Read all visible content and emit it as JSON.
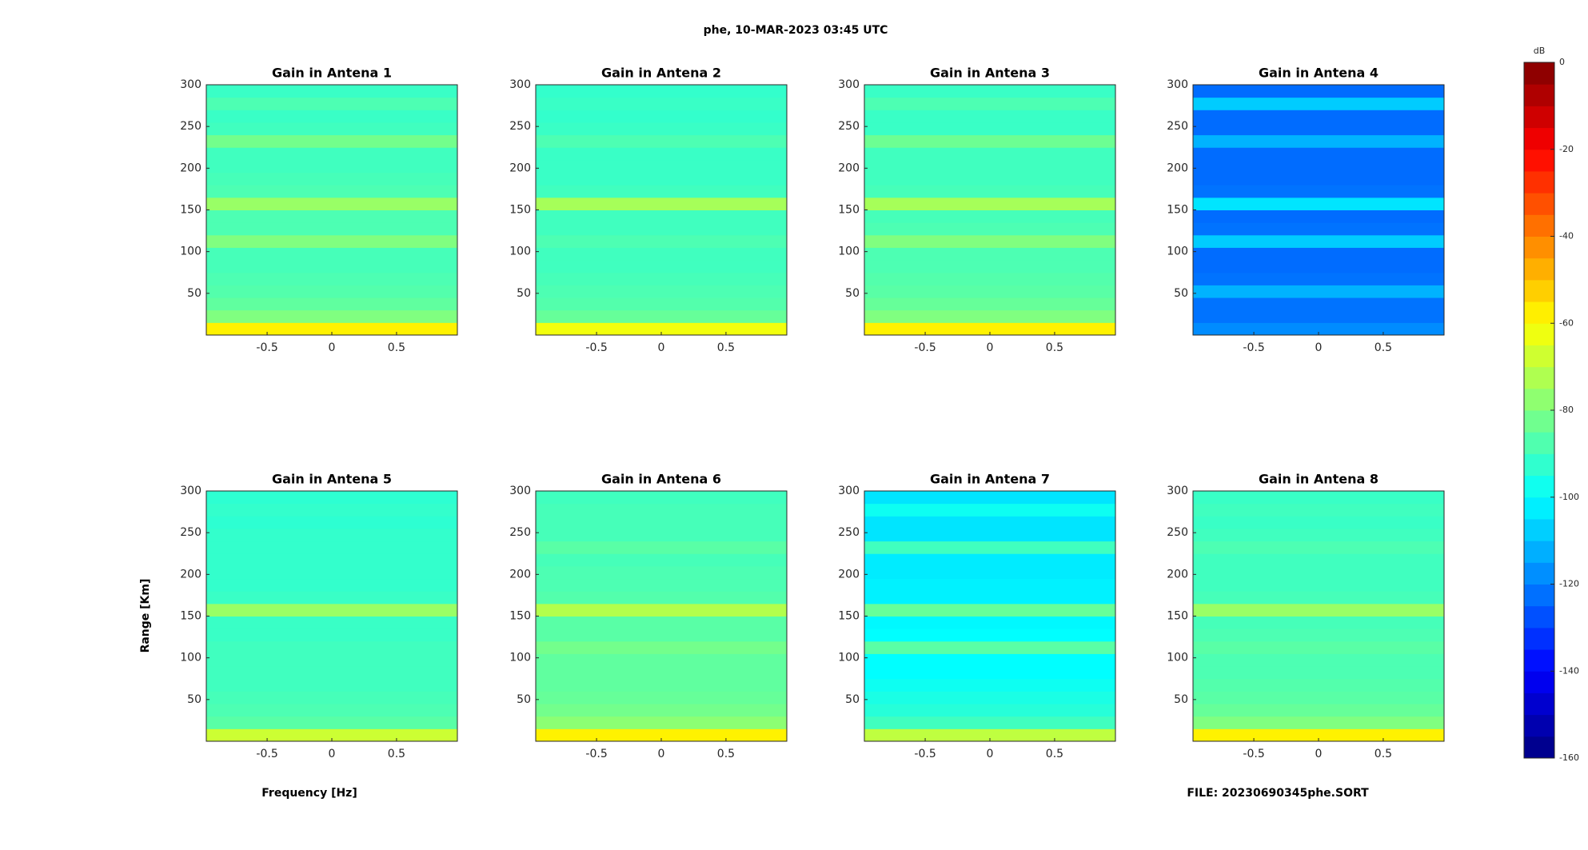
{
  "title": "phe, 10-MAR-2023 03:45 UTC",
  "xlabel": "Frequency [Hz]",
  "ylabel": "Range [Km]",
  "file": "FILE: 20230690345phe.SORT",
  "colorbar": {
    "label": "dB",
    "lim": [
      -160,
      0
    ],
    "ticks": [
      0,
      -20,
      -40,
      -60,
      -80,
      -100,
      -120,
      -140,
      -160
    ],
    "colormap": "jet"
  },
  "chart_data": [
    {
      "type": "heatmap",
      "title": "Gain in Antena 1",
      "xlim": [
        -0.97,
        0.97
      ],
      "xticks": [
        -0.5,
        0,
        0.5
      ],
      "ylim": [
        0,
        300
      ],
      "yticks": [
        50,
        100,
        150,
        200,
        250,
        300
      ],
      "ybins": [
        0,
        15,
        30,
        45,
        60,
        75,
        90,
        105,
        120,
        135,
        150,
        165,
        180,
        195,
        210,
        225,
        240,
        255,
        270,
        285,
        300
      ],
      "values": [
        -58,
        -80,
        -85,
        -87,
        -88,
        -89,
        -89,
        -80,
        -88,
        -88,
        -76,
        -88,
        -89,
        -90,
        -90,
        -82,
        -90,
        -91,
        -88,
        -91
      ]
    },
    {
      "type": "heatmap",
      "title": "Gain in Antena 2",
      "xlim": [
        -0.97,
        0.97
      ],
      "xticks": [
        -0.5,
        0,
        0.5
      ],
      "ylim": [
        0,
        300
      ],
      "yticks": [
        50,
        100,
        150,
        200,
        250,
        300
      ],
      "ybins": [
        0,
        15,
        30,
        45,
        60,
        75,
        90,
        105,
        120,
        135,
        150,
        165,
        180,
        195,
        210,
        225,
        240,
        255,
        270,
        285,
        300
      ],
      "values": [
        -62,
        -84,
        -87,
        -88,
        -89,
        -90,
        -90,
        -88,
        -90,
        -90,
        -74,
        -90,
        -91,
        -91,
        -91,
        -88,
        -91,
        -92,
        -91,
        -92
      ]
    },
    {
      "type": "heatmap",
      "title": "Gain in Antena 3",
      "xlim": [
        -0.97,
        0.97
      ],
      "xticks": [
        -0.5,
        0,
        0.5
      ],
      "ylim": [
        0,
        300
      ],
      "yticks": [
        50,
        100,
        150,
        200,
        250,
        300
      ],
      "ybins": [
        0,
        15,
        30,
        45,
        60,
        75,
        90,
        105,
        120,
        135,
        150,
        165,
        180,
        195,
        210,
        225,
        240,
        255,
        270,
        285,
        300
      ],
      "values": [
        -58,
        -80,
        -84,
        -86,
        -87,
        -88,
        -88,
        -80,
        -88,
        -89,
        -74,
        -89,
        -90,
        -90,
        -90,
        -83,
        -91,
        -91,
        -88,
        -91
      ]
    },
    {
      "type": "heatmap",
      "title": "Gain in Antena 4",
      "xlim": [
        -0.97,
        0.97
      ],
      "xticks": [
        -0.5,
        0,
        0.5
      ],
      "ylim": [
        0,
        300
      ],
      "yticks": [
        50,
        100,
        150,
        200,
        250,
        300
      ],
      "ybins": [
        0,
        15,
        30,
        45,
        60,
        75,
        90,
        105,
        120,
        135,
        150,
        165,
        180,
        195,
        210,
        225,
        240,
        255,
        270,
        285,
        300
      ],
      "values": [
        -118,
        -122,
        -122,
        -112,
        -122,
        -123,
        -123,
        -108,
        -122,
        -123,
        -104,
        -122,
        -123,
        -123,
        -123,
        -112,
        -123,
        -123,
        -108,
        -123
      ]
    },
    {
      "type": "heatmap",
      "title": "Gain in Antena 5",
      "xlim": [
        -0.97,
        0.97
      ],
      "xticks": [
        -0.5,
        0,
        0.5
      ],
      "ylim": [
        0,
        300
      ],
      "yticks": [
        50,
        100,
        150,
        200,
        250,
        300
      ],
      "ybins": [
        0,
        15,
        30,
        45,
        60,
        75,
        90,
        105,
        120,
        135,
        150,
        165,
        180,
        195,
        210,
        225,
        240,
        255,
        270,
        285,
        300
      ],
      "values": [
        -68,
        -86,
        -88,
        -89,
        -90,
        -90,
        -90,
        -90,
        -91,
        -91,
        -76,
        -91,
        -92,
        -92,
        -92,
        -92,
        -92,
        -93,
        -92,
        -93
      ]
    },
    {
      "type": "heatmap",
      "title": "Gain in Antena 6",
      "xlim": [
        -0.97,
        0.97
      ],
      "xticks": [
        -0.5,
        0,
        0.5
      ],
      "ylim": [
        0,
        300
      ],
      "yticks": [
        50,
        100,
        150,
        200,
        250,
        300
      ],
      "ybins": [
        0,
        15,
        30,
        45,
        60,
        75,
        90,
        105,
        120,
        135,
        150,
        165,
        180,
        195,
        210,
        225,
        240,
        255,
        270,
        285,
        300
      ],
      "values": [
        -58,
        -78,
        -82,
        -84,
        -85,
        -85,
        -85,
        -82,
        -86,
        -86,
        -72,
        -87,
        -88,
        -88,
        -89,
        -86,
        -89,
        -89,
        -89,
        -90
      ]
    },
    {
      "type": "heatmap",
      "title": "Gain in Antena 7",
      "xlim": [
        -0.97,
        0.97
      ],
      "xticks": [
        -0.5,
        0,
        0.5
      ],
      "ylim": [
        0,
        300
      ],
      "yticks": [
        50,
        100,
        150,
        200,
        250,
        300
      ],
      "ybins": [
        0,
        15,
        30,
        45,
        60,
        75,
        90,
        105,
        120,
        135,
        150,
        165,
        180,
        195,
        210,
        225,
        240,
        255,
        270,
        285,
        300
      ],
      "values": [
        -70,
        -90,
        -94,
        -96,
        -98,
        -100,
        -100,
        -86,
        -100,
        -101,
        -84,
        -102,
        -102,
        -103,
        -103,
        -90,
        -104,
        -104,
        -98,
        -104
      ]
    },
    {
      "type": "heatmap",
      "title": "Gain in Antena 8",
      "xlim": [
        -0.97,
        0.97
      ],
      "xticks": [
        -0.5,
        0,
        0.5
      ],
      "ylim": [
        0,
        300
      ],
      "yticks": [
        50,
        100,
        150,
        200,
        250,
        300
      ],
      "ybins": [
        0,
        15,
        30,
        45,
        60,
        75,
        90,
        105,
        120,
        135,
        150,
        165,
        180,
        195,
        210,
        225,
        240,
        255,
        270,
        285,
        300
      ],
      "values": [
        -58,
        -80,
        -84,
        -86,
        -87,
        -88,
        -88,
        -86,
        -88,
        -89,
        -76,
        -89,
        -90,
        -90,
        -90,
        -88,
        -90,
        -91,
        -90,
        -91
      ]
    }
  ]
}
